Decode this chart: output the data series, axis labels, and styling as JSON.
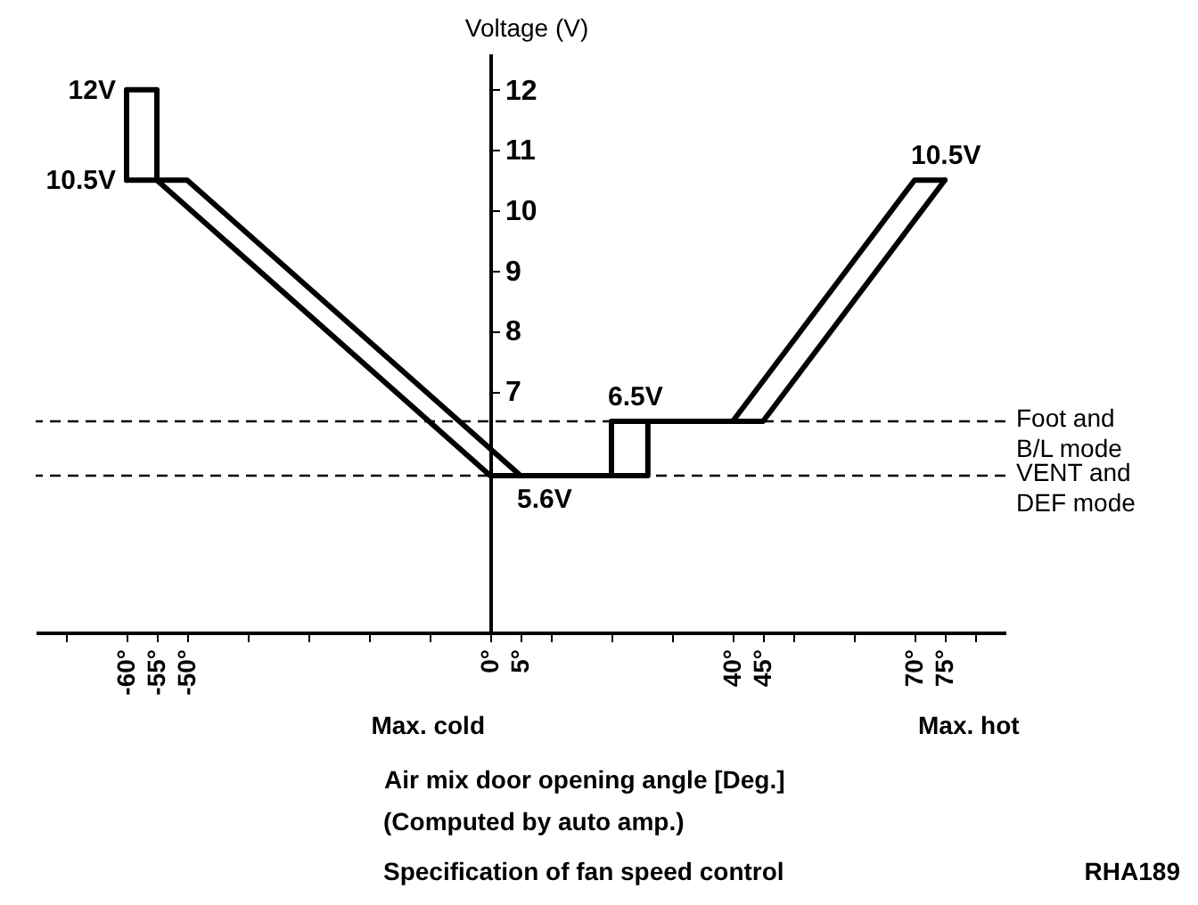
{
  "chart_data": {
    "type": "line",
    "title": "Specification of fan speed control",
    "xlabel": "Air mix door opening angle [Deg.]",
    "ylabel": "Voltage (V)",
    "annotations": [
      {
        "text": "12V",
        "x": -60,
        "y": 12
      },
      {
        "text": "10.5V",
        "x": -60,
        "y": 10.5
      },
      {
        "text": "10.5V",
        "x": 70,
        "y": 10.5
      },
      {
        "text": "6.5V",
        "x": 20,
        "y": 6.5
      },
      {
        "text": "5.6V",
        "x": 5,
        "y": 5.6
      },
      "Max. cold",
      "Max. hot",
      "(Computed by auto amp.)",
      "RHA189"
    ],
    "series": [
      {
        "color": "#000000",
        "x": [
          -60,
          -60,
          -55,
          -55
        ],
        "values": [
          10.5,
          12,
          12,
          10.5
        ]
      },
      {
        "color": "#000000",
        "x": [
          -60,
          -50,
          5,
          26,
          26,
          45,
          75
        ],
        "values": [
          10.5,
          10.5,
          5.6,
          5.6,
          6.5,
          6.5,
          10.5
        ]
      },
      {
        "color": "#000000",
        "x": [
          -55,
          0,
          20,
          20,
          40,
          70,
          75
        ],
        "values": [
          10.5,
          5.6,
          5.6,
          6.5,
          6.5,
          10.5,
          10.5
        ]
      }
    ],
    "xlim": [
      -75,
      85
    ],
    "ylim": [
      3,
      12.6
    ],
    "xticks": [
      {
        "value": -70,
        "label": null
      },
      {
        "value": -60,
        "label": "-60°"
      },
      {
        "value": -55,
        "label": "-55°"
      },
      {
        "value": -50,
        "label": "-50°"
      },
      {
        "value": -40,
        "label": null
      },
      {
        "value": -30,
        "label": null
      },
      {
        "value": -20,
        "label": null
      },
      {
        "value": -10,
        "label": null
      },
      {
        "value": 0,
        "label": "0°"
      },
      {
        "value": 5,
        "label": "5°"
      },
      {
        "value": 10,
        "label": null
      },
      {
        "value": 20,
        "label": null
      },
      {
        "value": 30,
        "label": null
      },
      {
        "value": 40,
        "label": "40°"
      },
      {
        "value": 45,
        "label": "45°"
      },
      {
        "value": 50,
        "label": null
      },
      {
        "value": 60,
        "label": null
      },
      {
        "value": 70,
        "label": "70°"
      },
      {
        "value": 75,
        "label": "75°"
      },
      {
        "value": 80,
        "label": null
      }
    ],
    "yticks": [
      7,
      8,
      9,
      10,
      11,
      12
    ],
    "ref_lines": [
      {
        "axis": "y",
        "value": 6.5,
        "label": "Foot and\nB/L mode",
        "line_style": "dashed"
      },
      {
        "axis": "y",
        "value": 5.6,
        "label": "VENT and\nDEF mode",
        "line_style": "dashed"
      }
    ],
    "marker": "none",
    "line_style": "solid",
    "grid": false
  }
}
